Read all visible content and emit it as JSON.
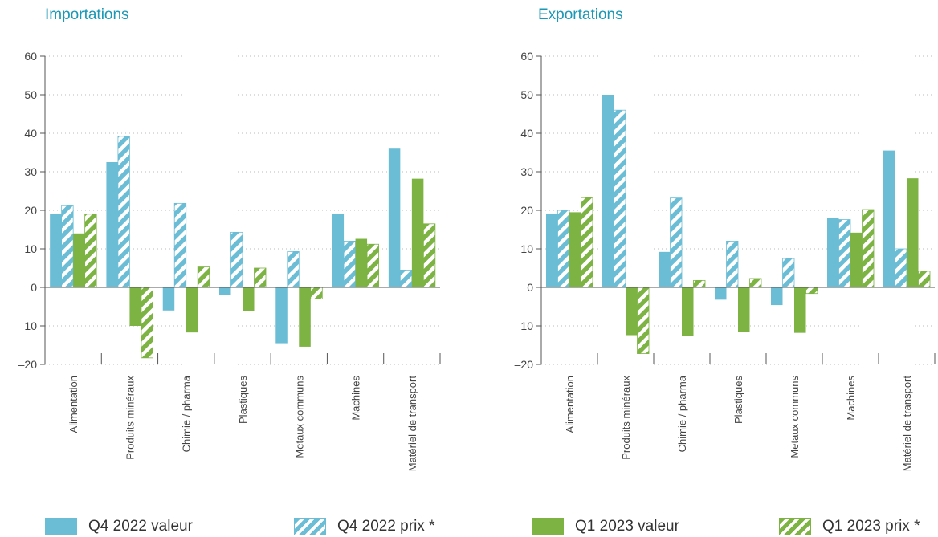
{
  "colors": {
    "q4": "#6bbdd6",
    "q1": "#7cb342",
    "grid": "#bbbbbb",
    "axis": "#555555"
  },
  "legend": [
    {
      "label": "Q4 2022 valeur",
      "color": "#6bbdd6",
      "pattern": "solid"
    },
    {
      "label": "Q4 2022 prix *",
      "color": "#6bbdd6",
      "pattern": "hatched"
    },
    {
      "label": "Q1 2023 valeur",
      "color": "#7cb342",
      "pattern": "solid"
    },
    {
      "label": "Q1 2023 prix *",
      "color": "#7cb342",
      "pattern": "hatched"
    }
  ],
  "chart_data": [
    {
      "type": "bar",
      "title": "Importations",
      "categories": [
        "Alimentation",
        "Produits minéraux",
        "Chimie / pharma",
        "Plastiques",
        "Metaux communs",
        "Machines",
        "Matériel de transport"
      ],
      "ylim": [
        -20,
        60
      ],
      "yticks": [
        60,
        50,
        40,
        30,
        20,
        10,
        0,
        -10,
        -20
      ],
      "yticklabels": [
        "60",
        "50",
        "40",
        "30",
        "20",
        "10",
        "0",
        "–10",
        "–20"
      ],
      "grid": true,
      "series": [
        {
          "name": "Q4 2022 valeur",
          "values": [
            19,
            32.5,
            -6,
            -2,
            -14.5,
            19,
            36
          ]
        },
        {
          "name": "Q4 2022 prix *",
          "values": [
            21.2,
            39.2,
            21.8,
            14.3,
            9.3,
            12,
            4.5
          ]
        },
        {
          "name": "Q1 2023 valeur",
          "values": [
            14,
            -10,
            -11.7,
            -6.2,
            -15.4,
            12.6,
            28.2
          ]
        },
        {
          "name": "Q1 2023 prix *",
          "values": [
            19,
            -18.3,
            5.3,
            5,
            -3,
            11.2,
            16.5
          ]
        }
      ]
    },
    {
      "type": "bar",
      "title": "Exportations",
      "categories": [
        "Alimentation",
        "Produits minéraux",
        "Chimie / pharma",
        "Plastiques",
        "Metaux communs",
        "Machines",
        "Matériel de transport"
      ],
      "ylim": [
        -20,
        60
      ],
      "yticks": [
        60,
        50,
        40,
        30,
        20,
        10,
        0,
        -10,
        -20
      ],
      "yticklabels": [
        "60",
        "50",
        "40",
        "30",
        "20",
        "10",
        "0",
        "–10",
        "–20"
      ],
      "grid": true,
      "series": [
        {
          "name": "Q4 2022 valeur",
          "values": [
            19,
            50,
            9.2,
            -3.2,
            -4.6,
            18,
            35.5
          ]
        },
        {
          "name": "Q4 2022 prix *",
          "values": [
            20,
            46,
            23.2,
            12,
            7.5,
            17.6,
            10
          ]
        },
        {
          "name": "Q1 2023 valeur",
          "values": [
            19.5,
            -12.4,
            -12.6,
            -11.5,
            -11.8,
            14.2,
            28.3
          ]
        },
        {
          "name": "Q1 2023 prix *",
          "values": [
            23.3,
            -17.2,
            1.8,
            2.3,
            -1.6,
            20.2,
            4.2
          ]
        }
      ]
    }
  ]
}
